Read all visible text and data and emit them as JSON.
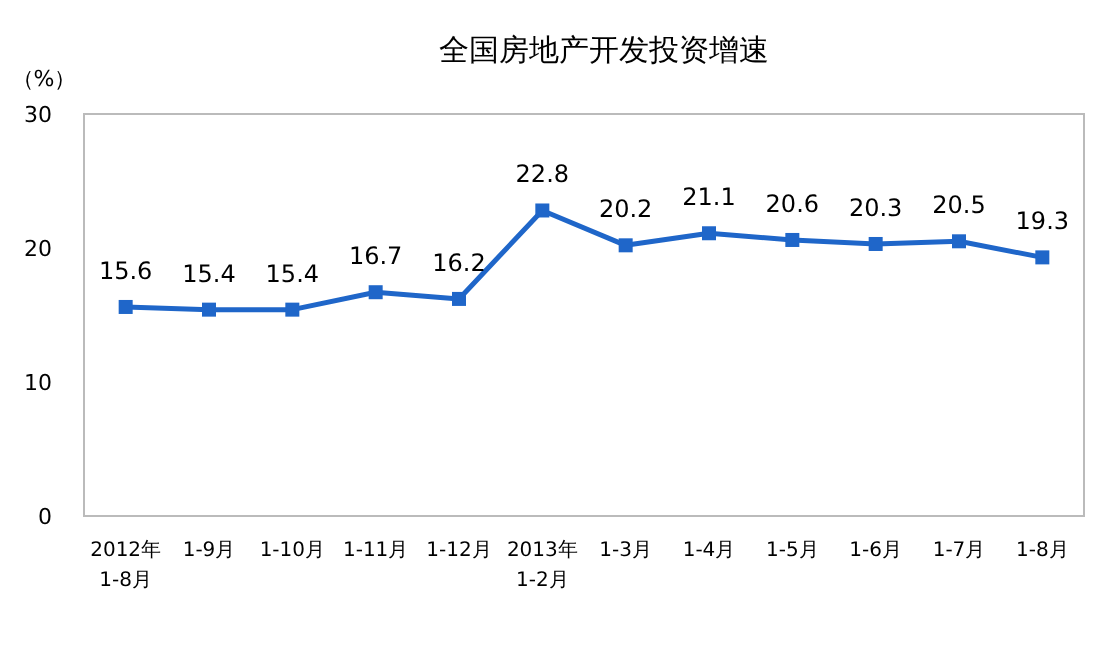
{
  "chart_data": {
    "type": "line",
    "title": "全国房地产开发投资增速",
    "ylabel": "（%）",
    "categories": [
      "2012年\n1-8月",
      "1-9月",
      "1-10月",
      "1-11月",
      "1-12月",
      "2013年\n1-2月",
      "1-3月",
      "1-4月",
      "1-5月",
      "1-6月",
      "1-7月",
      "1-8月"
    ],
    "series": [
      {
        "color": "#1f66c9",
        "values": [
          15.6,
          15.4,
          15.4,
          16.7,
          16.2,
          22.8,
          20.2,
          21.1,
          20.6,
          20.3,
          20.5,
          19.3
        ]
      }
    ],
    "ylim": [
      0,
      30
    ],
    "yticks": [
      0,
      10,
      20,
      30
    ],
    "grid": false,
    "marker": "square",
    "line_style": "solid",
    "data_labels": true
  }
}
